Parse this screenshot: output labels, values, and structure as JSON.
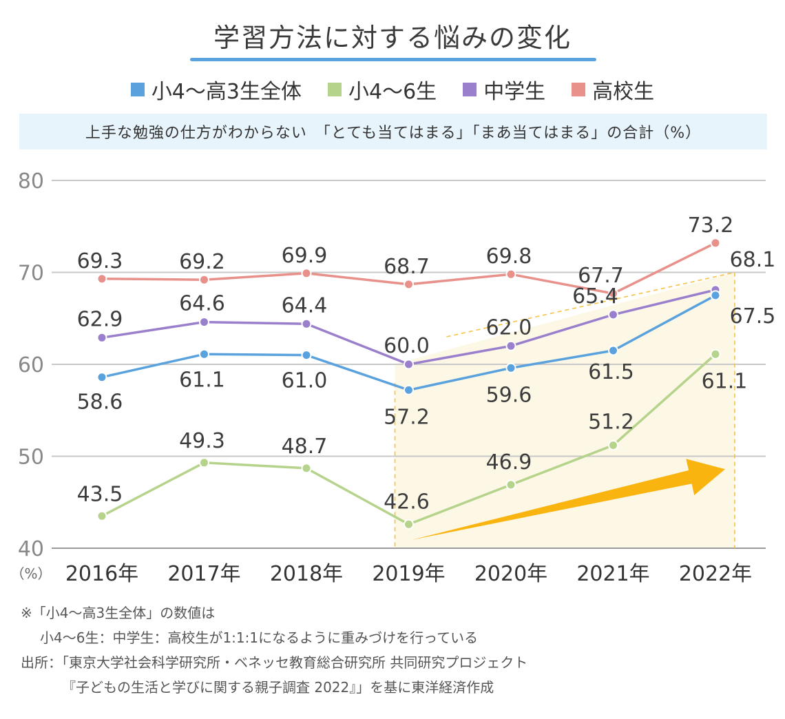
{
  "title": "学習方法に対する悩みの変化",
  "subtitle": "上手な勉強の仕方がわからない　「とても当てはまる」「まあ当てはまる」の合計（%）",
  "legend": [
    {
      "label": "小4〜高3生全体",
      "color": "#5aa2dd"
    },
    {
      "label": "小4〜6生",
      "color": "#b5d38a"
    },
    {
      "label": "中学生",
      "color": "#9a7fcc"
    },
    {
      "label": "高校生",
      "color": "#e8908a"
    }
  ],
  "notes": {
    "line1": "※「小4〜高3生全体」の数値は",
    "line2": "小4〜6生：中学生：高校生が1:1:1になるように重みづけを行っている",
    "line3": "出所：「東京大学社会科学研究所・ベネッセ教育総合研究所 共同研究プロジェクト",
    "line4": "『子どもの生活と学びに関する親子調査 2022』」を基に東洋経済作成"
  },
  "chart_data": {
    "type": "line",
    "title": "学習方法に対する悩みの変化",
    "ylabel": "（%）",
    "ylim": [
      40,
      80
    ],
    "yticks": [
      40,
      50,
      60,
      70,
      80
    ],
    "grid": true,
    "legend_position": "top",
    "categories": [
      "2016年",
      "2017年",
      "2018年",
      "2019年",
      "2020年",
      "2021年",
      "2022年"
    ],
    "series": [
      {
        "name": "高校生",
        "color": "#e8908a",
        "values": [
          69.3,
          69.2,
          69.9,
          68.7,
          69.8,
          67.7,
          73.2
        ],
        "labels": [
          "69.3",
          "69.2",
          "69.9",
          "68.7",
          "69.8",
          "67.7",
          "73.2"
        ]
      },
      {
        "name": "中学生",
        "color": "#9a7fcc",
        "values": [
          62.9,
          64.6,
          64.4,
          60.0,
          62.0,
          65.4,
          68.1
        ],
        "labels": [
          "62.9",
          "64.6",
          "64.4",
          "60.0",
          "62.0",
          "65.4",
          "68.1"
        ]
      },
      {
        "name": "小4〜高3生全体",
        "color": "#5aa2dd",
        "values": [
          58.6,
          61.1,
          61.0,
          57.2,
          59.6,
          61.5,
          67.5
        ],
        "labels": [
          "58.6",
          "61.1",
          "61.0",
          "57.2",
          "59.6",
          "61.5",
          "67.5"
        ]
      },
      {
        "name": "小4〜6生",
        "color": "#b5d38a",
        "values": [
          43.5,
          49.3,
          48.7,
          42.6,
          46.9,
          51.2,
          61.1
        ],
        "labels": [
          "43.5",
          "49.3",
          "48.7",
          "42.6",
          "46.9",
          "51.2",
          "61.1"
        ]
      }
    ],
    "highlight": {
      "from": "2019年",
      "to": "2022年",
      "fill": "#fdf8e6",
      "border": "#f5c242",
      "arrow_color": "#f9b40f"
    }
  }
}
